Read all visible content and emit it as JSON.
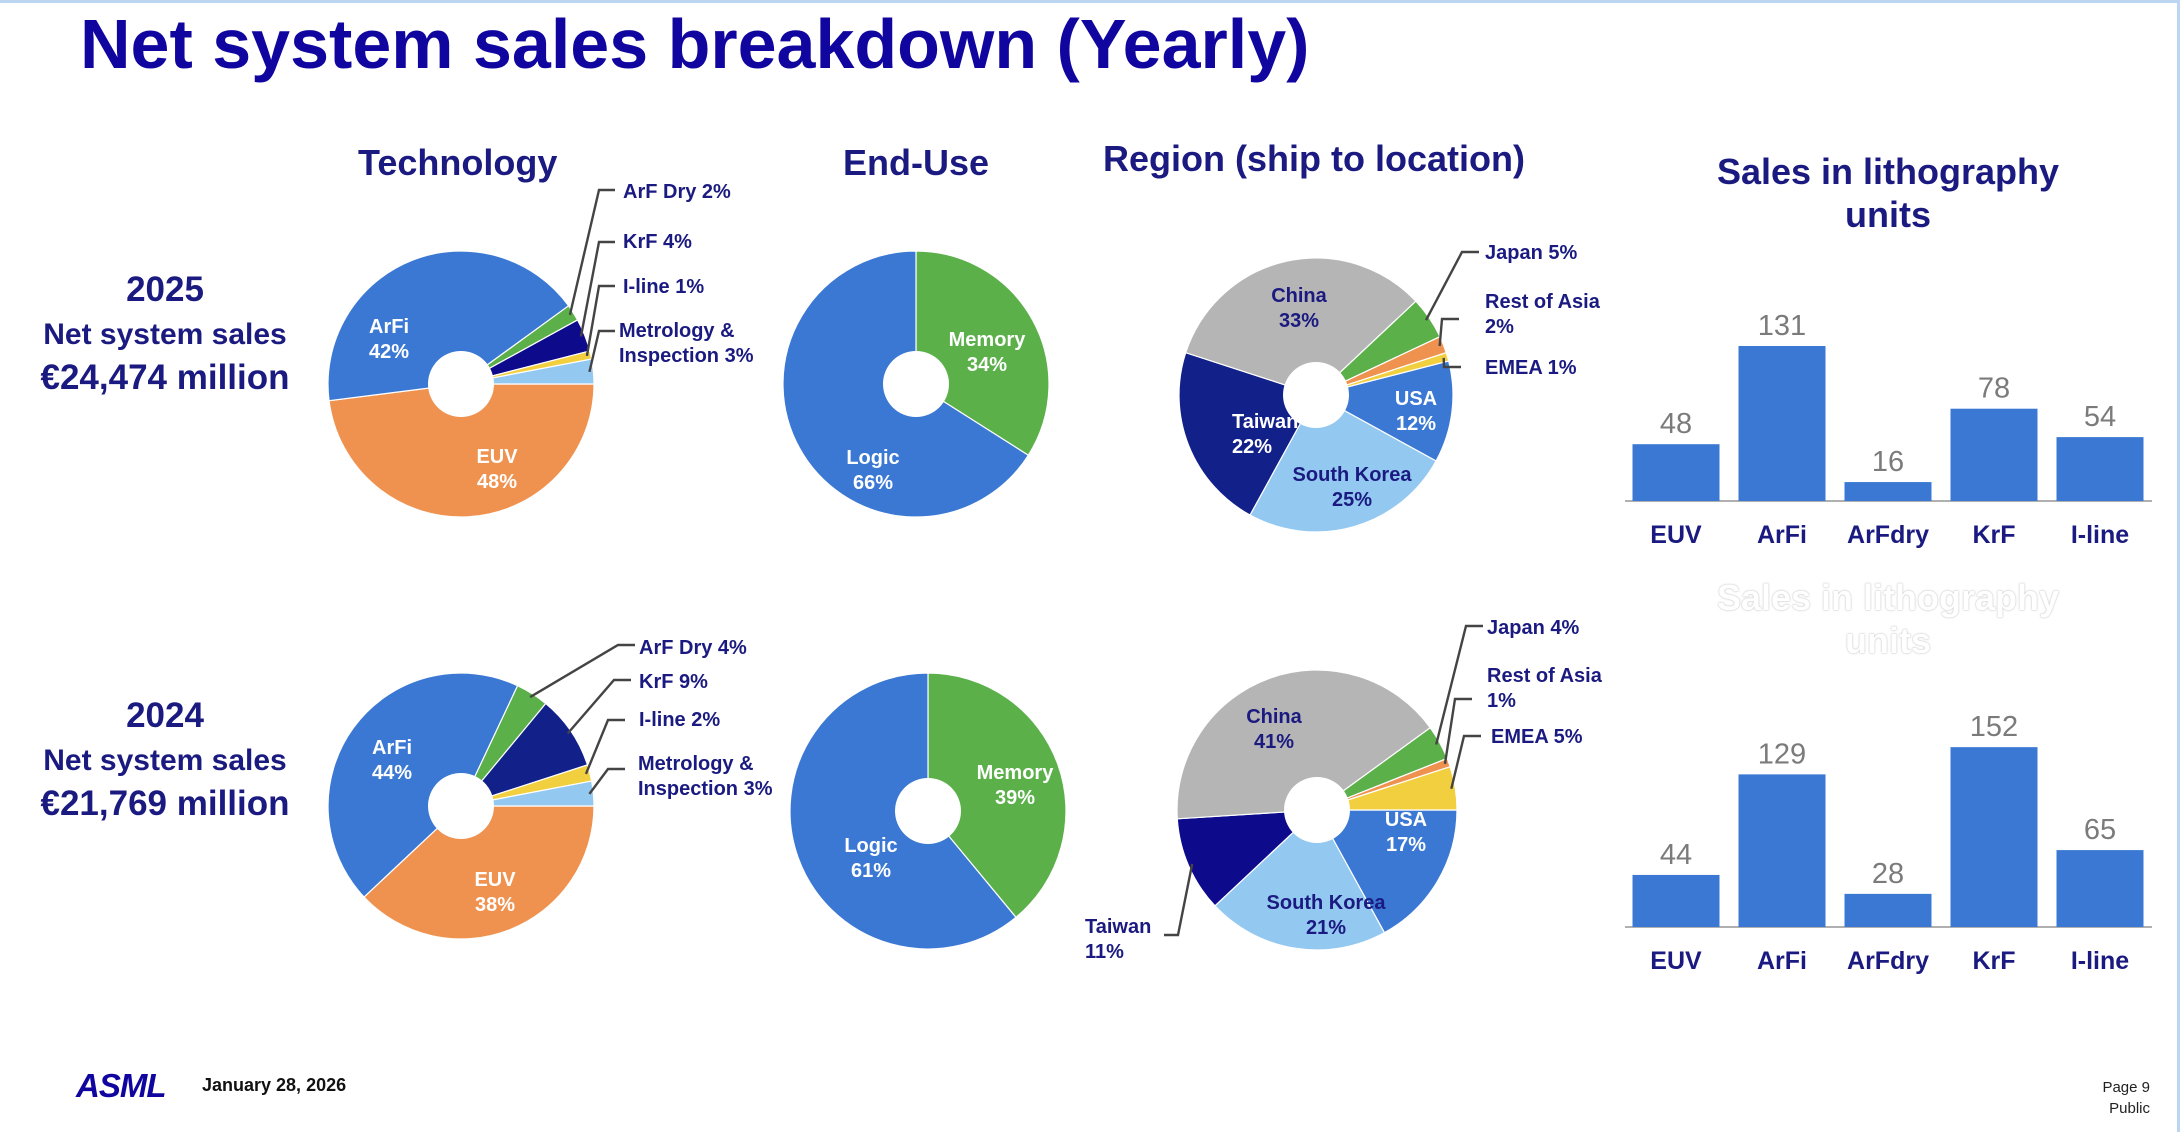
{
  "title": "Net system sales breakdown (Yearly)",
  "headers": {
    "technology": "Technology",
    "end_use": "End-Use",
    "region": "Region (ship to location)",
    "units_l1": "Sales in lithography",
    "units_l2": "units"
  },
  "rows": [
    {
      "year": "2025",
      "label": "Net system sales",
      "amount": "€24,474 million"
    },
    {
      "year": "2024",
      "label": "Net system sales",
      "amount": "€21,769 million"
    }
  ],
  "ghost_header": {
    "l1": "Sales in lithography",
    "l2": "units"
  },
  "footer": {
    "logo": "ASML",
    "date": "January 28, 2026",
    "page": "Page 9",
    "classification": "Public"
  },
  "colors": {
    "title": "#10069f",
    "arfi": "#3a78d4",
    "euv": "#f0924f",
    "green": "#5bb04a",
    "navy": "#0d0a8c",
    "light_blue": "#93c8f0",
    "yellow": "#f2cf3f",
    "orange": "#f0924f",
    "gray": "#b5b5b5",
    "dark_navy": "#122089",
    "bar": "#3a78d4"
  },
  "chart_data": [
    {
      "type": "pie",
      "title": "Technology",
      "year": "2025",
      "slices": [
        {
          "label": "EUV",
          "value": 48,
          "text": "EUV\n48%",
          "color": "#f0924f"
        },
        {
          "label": "ArFi",
          "value": 42,
          "text": "ArFi\n42%",
          "color": "#3a78d4"
        },
        {
          "label": "ArF Dry",
          "value": 2,
          "text": "ArF Dry 2%",
          "color": "#5bb04a"
        },
        {
          "label": "KrF",
          "value": 4,
          "text": "KrF 4%",
          "color": "#0d0a8c"
        },
        {
          "label": "I-line",
          "value": 1,
          "text": "I-line 1%",
          "color": "#f2cf3f"
        },
        {
          "label": "Metrology & Inspection",
          "value": 3,
          "text": "Metrology &\nInspection 3%",
          "color": "#93c8f0"
        }
      ]
    },
    {
      "type": "pie",
      "title": "End-Use",
      "year": "2025",
      "slices": [
        {
          "label": "Memory",
          "value": 34,
          "text": "Memory\n34%",
          "color": "#5bb04a"
        },
        {
          "label": "Logic",
          "value": 66,
          "text": "Logic\n66%",
          "color": "#3a78d4"
        }
      ]
    },
    {
      "type": "pie",
      "title": "Region (ship to location)",
      "year": "2025",
      "slices": [
        {
          "label": "USA",
          "value": 12,
          "text": "USA\n12%",
          "color": "#3a78d4"
        },
        {
          "label": "South Korea",
          "value": 25,
          "text": "South Korea\n25%",
          "color": "#93c8f0"
        },
        {
          "label": "Taiwan",
          "value": 22,
          "text": "Taiwan\n22%",
          "color": "#122089"
        },
        {
          "label": "China",
          "value": 33,
          "text": "China\n33%",
          "color": "#b5b5b5"
        },
        {
          "label": "Japan",
          "value": 5,
          "text": "Japan 5%",
          "color": "#5bb04a"
        },
        {
          "label": "Rest of Asia",
          "value": 2,
          "text": "Rest of Asia\n2%",
          "color": "#f0924f"
        },
        {
          "label": "EMEA",
          "value": 1,
          "text": "EMEA 1%",
          "color": "#f2cf3f"
        }
      ]
    },
    {
      "type": "bar",
      "title": "Sales in lithography units",
      "year": "2025",
      "categories": [
        "EUV",
        "ArFi",
        "ArFdry",
        "KrF",
        "I-line"
      ],
      "values": [
        48,
        131,
        16,
        78,
        54
      ]
    },
    {
      "type": "pie",
      "title": "Technology",
      "year": "2024",
      "slices": [
        {
          "label": "EUV",
          "value": 38,
          "text": "EUV\n38%",
          "color": "#f0924f"
        },
        {
          "label": "ArFi",
          "value": 44,
          "text": "ArFi\n44%",
          "color": "#3a78d4"
        },
        {
          "label": "ArF Dry",
          "value": 4,
          "text": "ArF Dry 4%",
          "color": "#5bb04a"
        },
        {
          "label": "KrF",
          "value": 9,
          "text": "KrF 9%",
          "color": "#122089"
        },
        {
          "label": "I-line",
          "value": 2,
          "text": "I-line 2%",
          "color": "#f2cf3f"
        },
        {
          "label": "Metrology & Inspection",
          "value": 3,
          "text": "Metrology &\nInspection 3%",
          "color": "#93c8f0"
        }
      ]
    },
    {
      "type": "pie",
      "title": "End-Use",
      "year": "2024",
      "slices": [
        {
          "label": "Memory",
          "value": 39,
          "text": "Memory\n39%",
          "color": "#5bb04a"
        },
        {
          "label": "Logic",
          "value": 61,
          "text": "Logic\n61%",
          "color": "#3a78d4"
        }
      ]
    },
    {
      "type": "pie",
      "title": "Region (ship to location)",
      "year": "2024",
      "slices": [
        {
          "label": "USA",
          "value": 17,
          "text": "USA\n17%",
          "color": "#3a78d4"
        },
        {
          "label": "South Korea",
          "value": 21,
          "text": "South Korea\n21%",
          "color": "#93c8f0"
        },
        {
          "label": "Taiwan",
          "value": 11,
          "text": "Taiwan\n11%",
          "color": "#0d0a8c"
        },
        {
          "label": "China",
          "value": 41,
          "text": "China\n41%",
          "color": "#b5b5b5"
        },
        {
          "label": "Japan",
          "value": 4,
          "text": "Japan 4%",
          "color": "#5bb04a"
        },
        {
          "label": "Rest of Asia",
          "value": 1,
          "text": "Rest of Asia\n1%",
          "color": "#f0924f"
        },
        {
          "label": "EMEA",
          "value": 5,
          "text": "EMEA 5%",
          "color": "#f2cf3f"
        }
      ]
    },
    {
      "type": "bar",
      "title": "Sales in lithography units",
      "year": "2024",
      "categories": [
        "EUV",
        "ArFi",
        "ArFdry",
        "KrF",
        "I-line"
      ],
      "values": [
        44,
        129,
        28,
        152,
        65
      ]
    }
  ]
}
